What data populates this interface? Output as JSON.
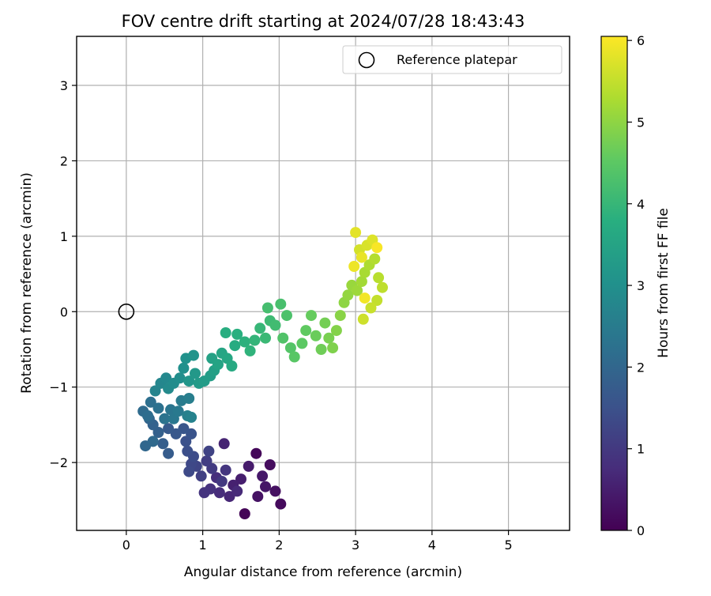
{
  "chart_data": {
    "type": "scatter",
    "title": "FOV centre drift starting at 2024/07/28 18:43:43",
    "xlabel": "Angular distance from reference (arcmin)",
    "ylabel": "Rotation from reference (arcmin)",
    "xlim": [
      -0.65,
      5.8
    ],
    "ylim": [
      -2.9,
      3.65
    ],
    "xticks": [
      "0",
      "1",
      "2",
      "3",
      "4",
      "5"
    ],
    "yticks": [
      "−2",
      "−1",
      "0",
      "1",
      "2",
      "3"
    ],
    "grid": true,
    "legend": {
      "placement": "upper right",
      "label": "Reference platepar"
    },
    "reference_point": {
      "x": 0,
      "y": 0
    },
    "colorbar": {
      "label": "Hours from first FF file",
      "range": [
        0,
        6.05
      ],
      "ticks": [
        "0",
        "1",
        "2",
        "3",
        "4",
        "5",
        "6"
      ],
      "colormap": "viridis"
    },
    "points": [
      [
        1.55,
        -2.68,
        0.05
      ],
      [
        1.7,
        -1.88,
        0.1
      ],
      [
        2.02,
        -2.55,
        0.15
      ],
      [
        1.88,
        -2.03,
        0.2
      ],
      [
        1.95,
        -2.38,
        0.25
      ],
      [
        1.72,
        -2.45,
        0.3
      ],
      [
        1.82,
        -2.32,
        0.35
      ],
      [
        1.78,
        -2.18,
        0.4
      ],
      [
        1.6,
        -2.05,
        0.45
      ],
      [
        1.5,
        -2.22,
        0.5
      ],
      [
        1.4,
        -2.3,
        0.55
      ],
      [
        1.28,
        -1.75,
        0.6
      ],
      [
        1.35,
        -2.45,
        0.65
      ],
      [
        1.45,
        -2.38,
        0.7
      ],
      [
        1.22,
        -2.4,
        0.75
      ],
      [
        1.18,
        -2.2,
        0.8
      ],
      [
        1.1,
        -2.35,
        0.85
      ],
      [
        1.02,
        -2.4,
        0.9
      ],
      [
        1.3,
        -2.1,
        0.95
      ],
      [
        1.25,
        -2.25,
        1.0
      ],
      [
        1.12,
        -2.08,
        1.05
      ],
      [
        1.05,
        -1.98,
        1.1
      ],
      [
        0.98,
        -2.18,
        1.15
      ],
      [
        1.08,
        -1.85,
        1.2
      ],
      [
        0.92,
        -2.05,
        1.25
      ],
      [
        0.85,
        -2.02,
        1.3
      ],
      [
        0.82,
        -2.12,
        1.35
      ],
      [
        0.88,
        -1.92,
        1.4
      ],
      [
        0.8,
        -1.85,
        1.45
      ],
      [
        0.78,
        -1.72,
        1.5
      ],
      [
        0.85,
        -1.62,
        1.55
      ],
      [
        0.75,
        -1.55,
        1.6
      ],
      [
        0.65,
        -1.62,
        1.65
      ],
      [
        0.55,
        -1.55,
        1.7
      ],
      [
        0.55,
        -1.88,
        1.75
      ],
      [
        0.48,
        -1.75,
        1.8
      ],
      [
        0.42,
        -1.6,
        1.85
      ],
      [
        0.35,
        -1.5,
        1.9
      ],
      [
        0.3,
        -1.42,
        1.95
      ],
      [
        0.25,
        -1.78,
        2.0
      ],
      [
        0.35,
        -1.72,
        2.05
      ],
      [
        0.22,
        -1.32,
        2.1
      ],
      [
        0.28,
        -1.38,
        2.15
      ],
      [
        0.32,
        -1.2,
        2.2
      ],
      [
        0.42,
        -1.28,
        2.25
      ],
      [
        0.5,
        -1.42,
        2.3
      ],
      [
        0.58,
        -1.3,
        2.35
      ],
      [
        0.62,
        -1.42,
        2.4
      ],
      [
        0.68,
        -1.32,
        2.45
      ],
      [
        0.72,
        -1.18,
        2.5
      ],
      [
        0.82,
        -1.15,
        2.55
      ],
      [
        0.8,
        -1.38,
        2.6
      ],
      [
        0.85,
        -1.4,
        2.65
      ],
      [
        0.38,
        -1.05,
        2.7
      ],
      [
        0.45,
        -0.95,
        2.75
      ],
      [
        0.52,
        -0.88,
        2.8
      ],
      [
        0.55,
        -1.02,
        2.85
      ],
      [
        0.62,
        -0.95,
        2.9
      ],
      [
        0.7,
        -0.88,
        2.95
      ],
      [
        0.75,
        -0.75,
        3.0
      ],
      [
        0.78,
        -0.62,
        3.05
      ],
      [
        0.88,
        -0.58,
        3.1
      ],
      [
        0.82,
        -0.92,
        3.15
      ],
      [
        0.9,
        -0.82,
        3.2
      ],
      [
        0.95,
        -0.95,
        3.25
      ],
      [
        1.02,
        -0.92,
        3.3
      ],
      [
        1.1,
        -0.85,
        3.35
      ],
      [
        1.15,
        -0.78,
        3.4
      ],
      [
        1.12,
        -0.62,
        3.45
      ],
      [
        1.2,
        -0.7,
        3.5
      ],
      [
        1.25,
        -0.55,
        3.55
      ],
      [
        1.32,
        -0.62,
        3.6
      ],
      [
        1.38,
        -0.72,
        3.65
      ],
      [
        1.42,
        -0.45,
        3.7
      ],
      [
        1.3,
        -0.28,
        3.75
      ],
      [
        1.45,
        -0.3,
        3.8
      ],
      [
        1.55,
        -0.4,
        3.85
      ],
      [
        1.62,
        -0.52,
        3.9
      ],
      [
        1.68,
        -0.38,
        3.95
      ],
      [
        1.75,
        -0.22,
        4.0
      ],
      [
        1.82,
        -0.35,
        4.05
      ],
      [
        1.88,
        -0.12,
        4.1
      ],
      [
        1.95,
        -0.18,
        4.15
      ],
      [
        1.85,
        0.05,
        4.2
      ],
      [
        2.02,
        0.1,
        4.25
      ],
      [
        2.1,
        -0.05,
        4.3
      ],
      [
        2.05,
        -0.35,
        4.35
      ],
      [
        2.15,
        -0.48,
        4.4
      ],
      [
        2.2,
        -0.6,
        4.45
      ],
      [
        2.3,
        -0.42,
        4.5
      ],
      [
        2.35,
        -0.25,
        4.55
      ],
      [
        2.42,
        -0.05,
        4.6
      ],
      [
        2.48,
        -0.32,
        4.65
      ],
      [
        2.55,
        -0.5,
        4.7
      ],
      [
        2.6,
        -0.15,
        4.75
      ],
      [
        2.65,
        -0.35,
        4.8
      ],
      [
        2.7,
        -0.48,
        4.85
      ],
      [
        2.75,
        -0.25,
        4.9
      ],
      [
        2.8,
        -0.05,
        4.95
      ],
      [
        2.85,
        0.12,
        5.0
      ],
      [
        2.9,
        0.22,
        5.05
      ],
      [
        2.95,
        0.35,
        5.1
      ],
      [
        3.02,
        0.28,
        5.15
      ],
      [
        3.08,
        0.4,
        5.2
      ],
      [
        3.12,
        0.52,
        5.25
      ],
      [
        3.18,
        0.62,
        5.3
      ],
      [
        3.25,
        0.7,
        5.35
      ],
      [
        3.3,
        0.45,
        5.4
      ],
      [
        3.35,
        0.32,
        5.45
      ],
      [
        3.28,
        0.15,
        5.5
      ],
      [
        3.2,
        0.05,
        5.55
      ],
      [
        3.1,
        -0.1,
        5.6
      ],
      [
        3.05,
        0.82,
        5.65
      ],
      [
        3.15,
        0.88,
        5.7
      ],
      [
        3.22,
        0.95,
        5.75
      ],
      [
        3.0,
        1.05,
        5.8
      ],
      [
        3.08,
        0.72,
        5.85
      ],
      [
        2.98,
        0.6,
        5.9
      ],
      [
        3.12,
        0.18,
        5.95
      ],
      [
        3.28,
        0.85,
        6.0
      ]
    ]
  }
}
